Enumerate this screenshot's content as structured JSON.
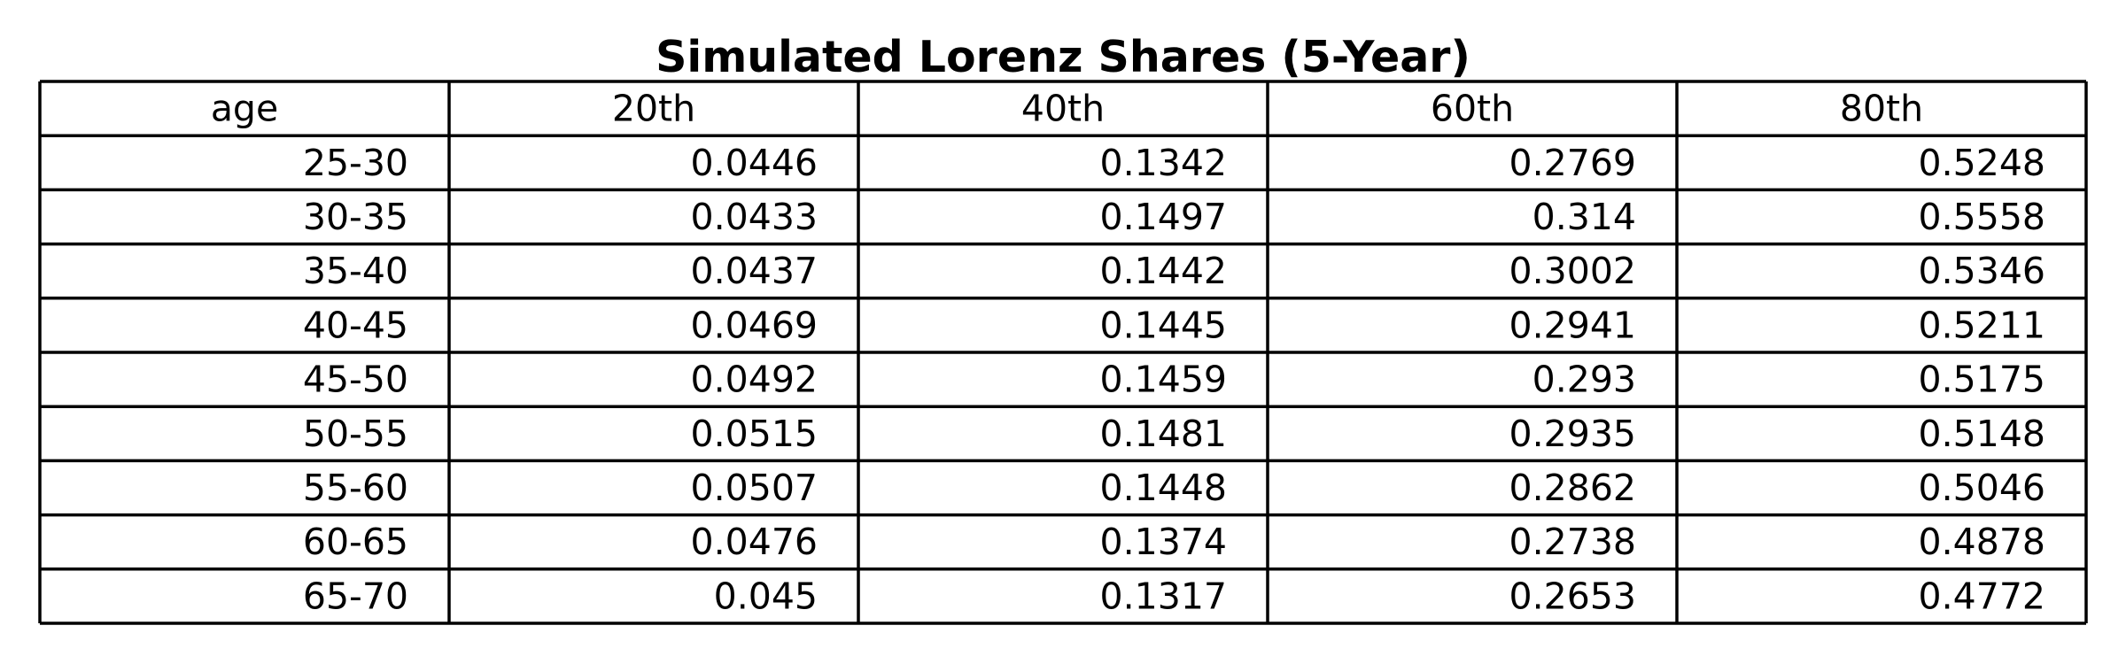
{
  "chart_data": {
    "type": "table",
    "title": "Simulated Lorenz Shares (5-Year)",
    "columns": [
      "age",
      "20th",
      "40th",
      "60th",
      "80th"
    ],
    "rows": [
      [
        "25-30",
        "0.0446",
        "0.1342",
        "0.2769",
        "0.5248"
      ],
      [
        "30-35",
        "0.0433",
        "0.1497",
        "0.314",
        "0.5558"
      ],
      [
        "35-40",
        "0.0437",
        "0.1442",
        "0.3002",
        "0.5346"
      ],
      [
        "40-45",
        "0.0469",
        "0.1445",
        "0.2941",
        "0.5211"
      ],
      [
        "45-50",
        "0.0492",
        "0.1459",
        "0.293",
        "0.5175"
      ],
      [
        "50-55",
        "0.0515",
        "0.1481",
        "0.2935",
        "0.5148"
      ],
      [
        "55-60",
        "0.0507",
        "0.1448",
        "0.2862",
        "0.5046"
      ],
      [
        "60-65",
        "0.0476",
        "0.1374",
        "0.2738",
        "0.4878"
      ],
      [
        "65-70",
        "0.045",
        "0.1317",
        "0.2653",
        "0.4772"
      ]
    ]
  }
}
